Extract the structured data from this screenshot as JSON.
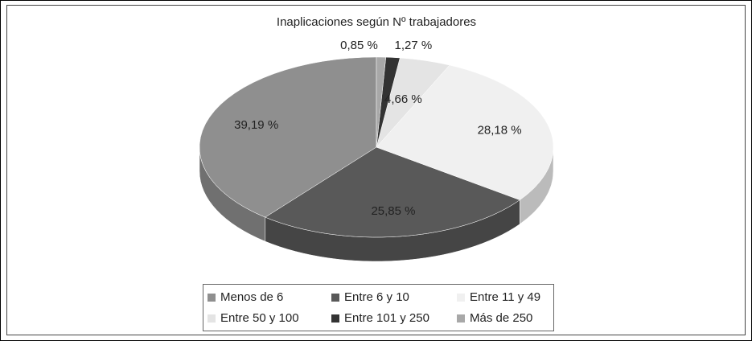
{
  "chart_data": {
    "type": "pie",
    "title": "Inaplicaciones según Nº trabajadores",
    "categories": [
      "Menos de 6",
      "Entre 6 y 10",
      "Entre 11 y 49",
      "Entre 50 y 100",
      "Entre 101 y 250",
      "Más de 250"
    ],
    "values": [
      39.19,
      25.85,
      28.18,
      4.66,
      1.27,
      0.85
    ],
    "value_labels": [
      "39,19 %",
      "25,85 %",
      "28,18 %",
      "4,66 %",
      "1,27 %",
      "0,85 %"
    ],
    "colors": [
      "#8f8f8f",
      "#595959",
      "#f0f0f0",
      "#e4e4e4",
      "#333333",
      "#a8a8a8"
    ],
    "legend": "bottom"
  }
}
